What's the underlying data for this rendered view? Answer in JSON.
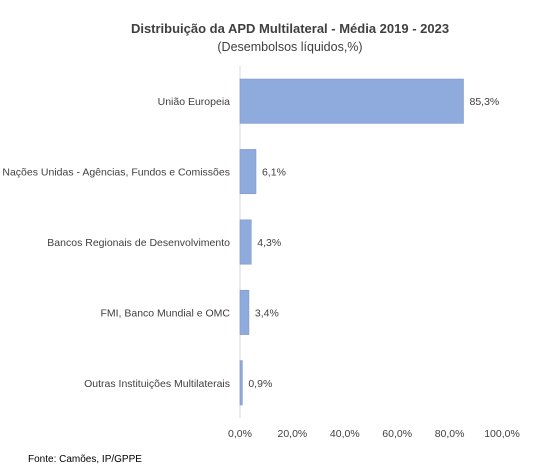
{
  "chart_data": {
    "type": "bar",
    "orientation": "horizontal",
    "title": "Distribuição da APD Multilateral - Média 2019 - 2023",
    "subtitle": "(Desembolsos líquidos,%)",
    "categories": [
      "União Europeia",
      "Nações Unidas - Agências, Fundos e Comissões",
      "Bancos Regionais de Desenvolvimento",
      "FMI, Banco Mundial e OMC",
      "Outras Instituições Multilaterais"
    ],
    "values": [
      85.3,
      6.1,
      4.3,
      3.4,
      0.9
    ],
    "value_labels": [
      "85,3%",
      "6,1%",
      "4,3%",
      "3,4%",
      "0,9%"
    ],
    "xlim": [
      0,
      100
    ],
    "xticks": [
      0,
      20,
      40,
      60,
      80,
      100
    ],
    "xtick_labels": [
      "0,0%",
      "20,0%",
      "40,0%",
      "60,0%",
      "80,0%",
      "100,0%"
    ],
    "grid": false,
    "legend": "none",
    "bar_color": "#8faadc"
  },
  "source": "Fonte: Camões, IP/GPPE"
}
